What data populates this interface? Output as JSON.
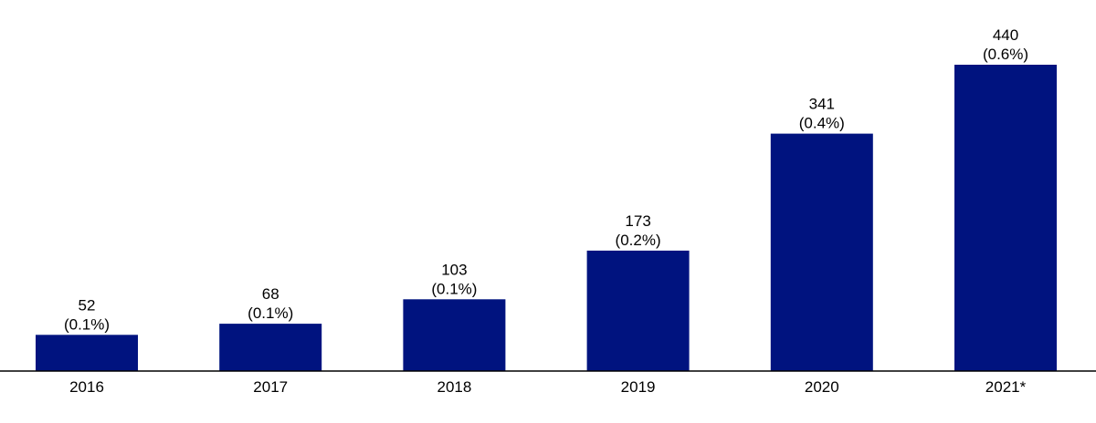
{
  "chart_data": {
    "type": "bar",
    "categories": [
      "2016",
      "2017",
      "2018",
      "2019",
      "2020",
      "2021*"
    ],
    "values": [
      52,
      68,
      103,
      173,
      341,
      440
    ],
    "value_labels": [
      "52",
      "68",
      "103",
      "173",
      "341",
      "440"
    ],
    "percent_labels": [
      "(0.1%)",
      "(0.1%)",
      "(0.1%)",
      "(0.2%)",
      "(0.4%)",
      "(0.6%)"
    ],
    "ylim": [
      0,
      440
    ],
    "grid": false,
    "colors": {
      "bar": "#00137F",
      "axis": "#000000",
      "text": "#000000"
    }
  }
}
